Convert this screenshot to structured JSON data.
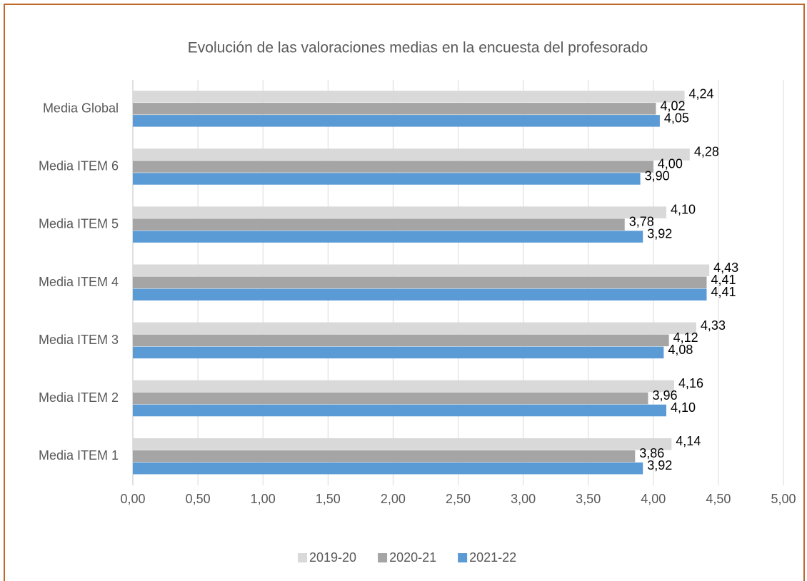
{
  "chart_data": {
    "type": "hbar",
    "title": "Evolución de las valoraciones medias en la encuesta del profesorado",
    "categories": [
      "Media Global",
      "Media ITEM 6",
      "Media ITEM 5",
      "Media ITEM 4",
      "Media ITEM 3",
      "Media ITEM 2",
      "Media ITEM 1"
    ],
    "series": [
      {
        "name": "2019-20",
        "color": "#d9d9d9",
        "values": [
          4.24,
          4.28,
          4.1,
          4.43,
          4.33,
          4.16,
          4.14
        ],
        "value_labels": [
          "4,24",
          "4,28",
          "4,10",
          "4,43",
          "4,33",
          "4,16",
          "4,14"
        ]
      },
      {
        "name": "2020-21",
        "color": "#a5a5a5",
        "values": [
          4.02,
          4.0,
          3.78,
          4.41,
          4.12,
          3.96,
          3.86
        ],
        "value_labels": [
          "4,02",
          "4,00",
          "3,78",
          "4,41",
          "4,12",
          "3,96",
          "3,86"
        ]
      },
      {
        "name": "2021-22",
        "color": "#5b9bd5",
        "values": [
          4.05,
          3.9,
          3.92,
          4.41,
          4.08,
          4.1,
          3.92
        ],
        "value_labels": [
          "4,05",
          "3,90",
          "3,92",
          "4,41",
          "4,08",
          "4,10",
          "3,92"
        ]
      }
    ],
    "xlim": [
      0,
      5
    ],
    "xticks": [
      {
        "value": 0,
        "label": "0,00"
      },
      {
        "value": 0.5,
        "label": "0,50"
      },
      {
        "value": 1,
        "label": "1,00"
      },
      {
        "value": 1.5,
        "label": "1,50"
      },
      {
        "value": 2,
        "label": "2,00"
      },
      {
        "value": 2.5,
        "label": "2,50"
      },
      {
        "value": 3,
        "label": "3,00"
      },
      {
        "value": 3.5,
        "label": "3,50"
      },
      {
        "value": 4,
        "label": "4,00"
      },
      {
        "value": 4.5,
        "label": "4,50"
      },
      {
        "value": 5,
        "label": "5,00"
      }
    ],
    "grid": true,
    "legend": "bottom"
  }
}
